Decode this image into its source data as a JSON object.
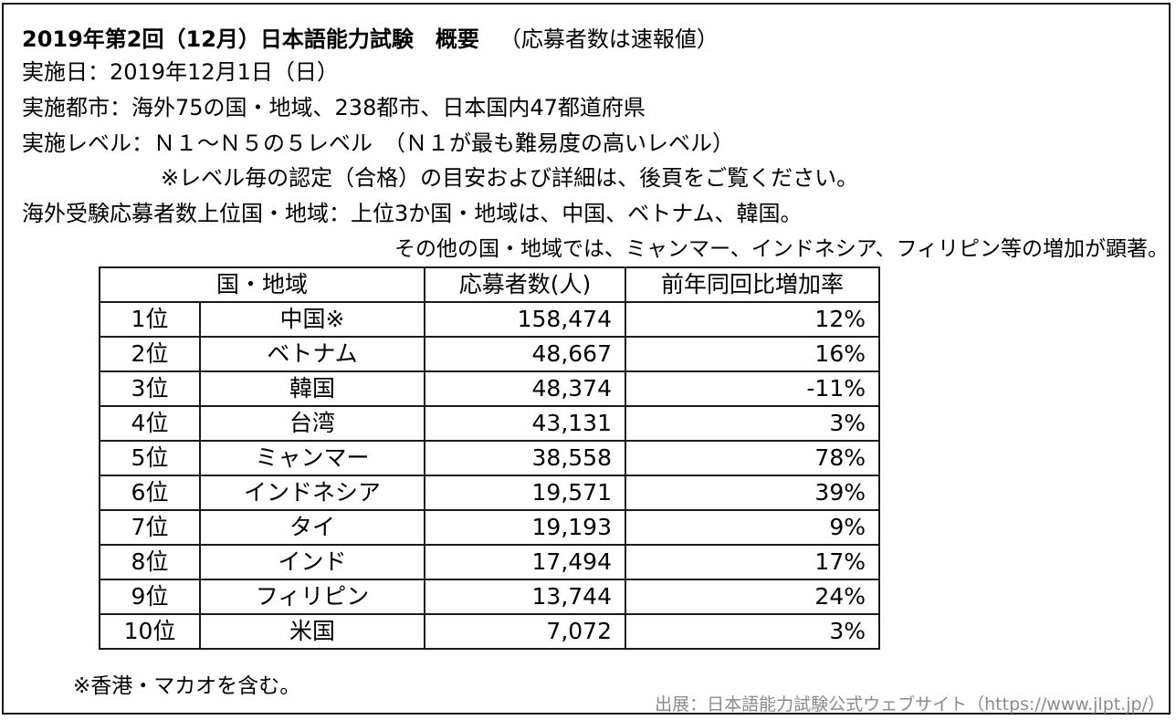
{
  "header": {
    "title": "2019年第2回（12月）日本語能力試験　概要",
    "title_note": "（応募者数は速報値）",
    "exam_date": "実施日：2019年12月1日（日）",
    "cities": "実施都市：海外75の国・地域、238都市、日本国内47都道府県",
    "levels": "実施レベル：Ｎ１～Ｎ５の５レベル　（Ｎ１が最も難易度の高いレベル）",
    "levels_note": "※レベル毎の認定（合格）の目安および詳細は、後頁をご覧ください。",
    "top_countries": "海外受験応募者数上位国・地域：上位3か国・地域は、中国、ベトナム、韓国。",
    "top_countries_note": "その他の国・地域では、ミャンマー、インドネシア、フィリピン等の増加が顕著。"
  },
  "table": {
    "headers": {
      "country": "国・地域",
      "applicants": "応募者数(人)",
      "growth": "前年同回比増加率"
    },
    "rows": [
      {
        "rank": "1位",
        "country": "中国※",
        "applicants": "158,474",
        "growth": "12%"
      },
      {
        "rank": "2位",
        "country": "ベトナム",
        "applicants": "48,667",
        "growth": "16%"
      },
      {
        "rank": "3位",
        "country": "韓国",
        "applicants": "48,374",
        "growth": "-11%"
      },
      {
        "rank": "4位",
        "country": "台湾",
        "applicants": "43,131",
        "growth": "3%"
      },
      {
        "rank": "5位",
        "country": "ミャンマー",
        "applicants": "38,558",
        "growth": "78%"
      },
      {
        "rank": "6位",
        "country": "インドネシア",
        "applicants": "19,571",
        "growth": "39%"
      },
      {
        "rank": "7位",
        "country": "タイ",
        "applicants": "19,193",
        "growth": "9%"
      },
      {
        "rank": "8位",
        "country": "インド",
        "applicants": "17,494",
        "growth": "17%"
      },
      {
        "rank": "9位",
        "country": "フィリピン",
        "applicants": "13,744",
        "growth": "24%"
      },
      {
        "rank": "10位",
        "country": "米国",
        "applicants": "7,072",
        "growth": "3%"
      }
    ]
  },
  "footnote": "※香港・マカオを含む。",
  "source": "出展：日本語能力試験公式ウェブサイト（https://www.jlpt.jp/）"
}
